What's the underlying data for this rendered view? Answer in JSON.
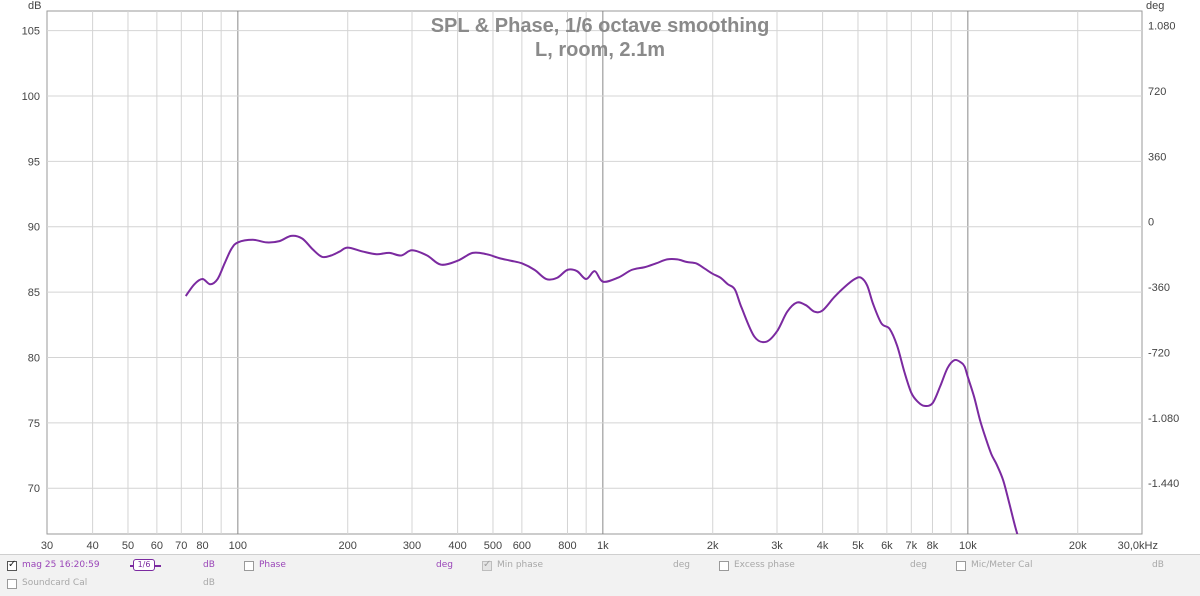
{
  "chart_data": {
    "type": "line",
    "title": "SPL & Phase, 1/6 octave smoothing",
    "subtitle": "L, room, 2.1m",
    "x_scale": "log",
    "xlim": [
      30,
      30000
    ],
    "x_ticks": [
      {
        "v": 30,
        "label": "30"
      },
      {
        "v": 40,
        "label": "40"
      },
      {
        "v": 50,
        "label": "50"
      },
      {
        "v": 60,
        "label": "60"
      },
      {
        "v": 70,
        "label": "70"
      },
      {
        "v": 80,
        "label": "80"
      },
      {
        "v": 100,
        "label": "100"
      },
      {
        "v": 200,
        "label": "200"
      },
      {
        "v": 300,
        "label": "300"
      },
      {
        "v": 400,
        "label": "400"
      },
      {
        "v": 500,
        "label": "500"
      },
      {
        "v": 600,
        "label": "600"
      },
      {
        "v": 800,
        "label": "800"
      },
      {
        "v": 1000,
        "label": "1k"
      },
      {
        "v": 2000,
        "label": "2k"
      },
      {
        "v": 3000,
        "label": "3k"
      },
      {
        "v": 4000,
        "label": "4k"
      },
      {
        "v": 5000,
        "label": "5k"
      },
      {
        "v": 6000,
        "label": "6k"
      },
      {
        "v": 7000,
        "label": "7k"
      },
      {
        "v": 8000,
        "label": "8k"
      },
      {
        "v": 10000,
        "label": "10k"
      },
      {
        "v": 20000,
        "label": "20k"
      },
      {
        "v": 30000,
        "label": "30,0kHz"
      }
    ],
    "x_minor_ticks": [
      90,
      900,
      9000
    ],
    "x_major_lines": [
      100,
      1000,
      10000
    ],
    "ylabel_left": "dB",
    "ylim_left": [
      66.5,
      106.5
    ],
    "y_ticks_left": [
      70,
      75,
      80,
      85,
      90,
      95,
      100,
      105
    ],
    "ylabel_right": "deg",
    "ylim_right": [
      -1720,
      1160
    ],
    "y_ticks_right": [
      {
        "v": 1080,
        "label": "1.080"
      },
      {
        "v": 720,
        "label": "720"
      },
      {
        "v": 360,
        "label": "360"
      },
      {
        "v": 0,
        "label": "0"
      },
      {
        "v": -360,
        "label": "-360"
      },
      {
        "v": -720,
        "label": "-720"
      },
      {
        "v": -1080,
        "label": "-1.080"
      },
      {
        "v": -1440,
        "label": "-1.440"
      }
    ],
    "grid": true,
    "series": [
      {
        "name": "mag 25 16:20:59",
        "color": "#7b2aa0",
        "x": [
          72,
          76,
          80,
          84,
          88,
          92,
          96,
          100,
          110,
          120,
          130,
          140,
          150,
          160,
          170,
          180,
          190,
          200,
          220,
          240,
          260,
          280,
          300,
          330,
          360,
          400,
          440,
          480,
          520,
          560,
          600,
          650,
          700,
          750,
          800,
          850,
          900,
          950,
          1000,
          1100,
          1200,
          1300,
          1400,
          1500,
          1600,
          1700,
          1800,
          1900,
          2000,
          2100,
          2200,
          2300,
          2400,
          2600,
          2800,
          3000,
          3200,
          3400,
          3600,
          3800,
          4000,
          4300,
          4600,
          4900,
          5100,
          5300,
          5500,
          5800,
          6100,
          6400,
          6700,
          7000,
          7300,
          7600,
          8000,
          8400,
          8800,
          9200,
          9600,
          9800,
          10000,
          10400,
          10800,
          11200,
          11600,
          12000,
          12500,
          13000,
          13500,
          14000,
          14500
        ],
        "values": [
          84.7,
          85.6,
          86.0,
          85.6,
          86.0,
          87.2,
          88.3,
          88.8,
          89.0,
          88.8,
          88.9,
          89.3,
          89.1,
          88.3,
          87.7,
          87.8,
          88.1,
          88.4,
          88.1,
          87.9,
          88.0,
          87.8,
          88.2,
          87.8,
          87.1,
          87.4,
          88.0,
          87.9,
          87.6,
          87.4,
          87.2,
          86.7,
          86.0,
          86.1,
          86.7,
          86.6,
          86.0,
          86.6,
          85.8,
          86.1,
          86.7,
          86.9,
          87.2,
          87.5,
          87.5,
          87.3,
          87.2,
          86.8,
          86.4,
          86.1,
          85.6,
          85.2,
          83.8,
          81.6,
          81.2,
          82.0,
          83.5,
          84.2,
          84.0,
          83.5,
          83.6,
          84.6,
          85.4,
          86.0,
          86.1,
          85.5,
          84.1,
          82.6,
          82.2,
          80.9,
          78.9,
          77.3,
          76.6,
          76.3,
          76.5,
          77.8,
          79.2,
          79.8,
          79.6,
          79.3,
          78.5,
          77.0,
          75.2,
          73.8,
          72.6,
          71.8,
          70.6,
          68.8,
          67.0,
          65.5,
          64.0
        ]
      }
    ]
  },
  "legend": {
    "row1": [
      {
        "checked": true,
        "label": "mag 25 16:20:59",
        "smoothing": "1/6",
        "unit": "dB"
      },
      {
        "checked": false,
        "label": "Phase",
        "unit": "deg"
      },
      {
        "checked": "dim",
        "label": "Min phase",
        "unit": "deg"
      },
      {
        "checked": false,
        "label": "Excess phase",
        "unit": "deg"
      },
      {
        "checked": false,
        "label": "Mic/Meter Cal",
        "unit": "dB"
      }
    ],
    "row2": [
      {
        "checked": false,
        "label": "Soundcard Cal",
        "unit": "dB"
      }
    ]
  },
  "colors": {
    "curve": "#7b2aa0",
    "grid": "#d4d4d4",
    "major_grid": "#888888",
    "title": "#8a8a8a"
  }
}
